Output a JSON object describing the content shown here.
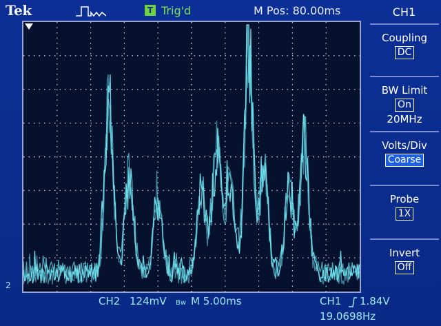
{
  "header": {
    "brand": "Tek",
    "trigger_badge": "T",
    "trigger_status": "Trig'd",
    "main_position": "M Pos: 80.00ms"
  },
  "status": {
    "ch2_label": "CH2",
    "ch2_scale": "124mV",
    "bw_mark": "Bw",
    "timebase": "M 5.00ms",
    "ch1_label": "CH1",
    "trigger_level": "1.84V",
    "frequency": "19.0698Hz",
    "channel_marker": "2"
  },
  "side_menu": {
    "title": "CH1",
    "items": [
      {
        "label": "Coupling",
        "value": "DC"
      },
      {
        "label": "BW Limit",
        "value": "On",
        "extra": "20MHz"
      },
      {
        "label": "Volts/Div",
        "value": "Coarse"
      },
      {
        "label": "Probe",
        "value": "1X"
      },
      {
        "label": "Invert",
        "value": "Off"
      }
    ]
  },
  "colors": {
    "background": "#0a2c8e",
    "trace": "#6fe3f0",
    "grid": "#c9d2f0",
    "trigger_ok": "#7fe04a"
  },
  "trace": {
    "peaks": [
      {
        "t": 0.255,
        "amp": 0.7
      },
      {
        "t": 0.315,
        "amp": 0.4
      },
      {
        "t": 0.4,
        "amp": 0.3
      },
      {
        "t": 0.53,
        "amp": 0.34
      },
      {
        "t": 0.575,
        "amp": 0.52
      },
      {
        "t": 0.615,
        "amp": 0.38
      },
      {
        "t": 0.67,
        "amp": 0.92
      },
      {
        "t": 0.715,
        "amp": 0.42
      },
      {
        "t": 0.79,
        "amp": 0.36
      },
      {
        "t": 0.835,
        "amp": 0.55
      }
    ]
  }
}
